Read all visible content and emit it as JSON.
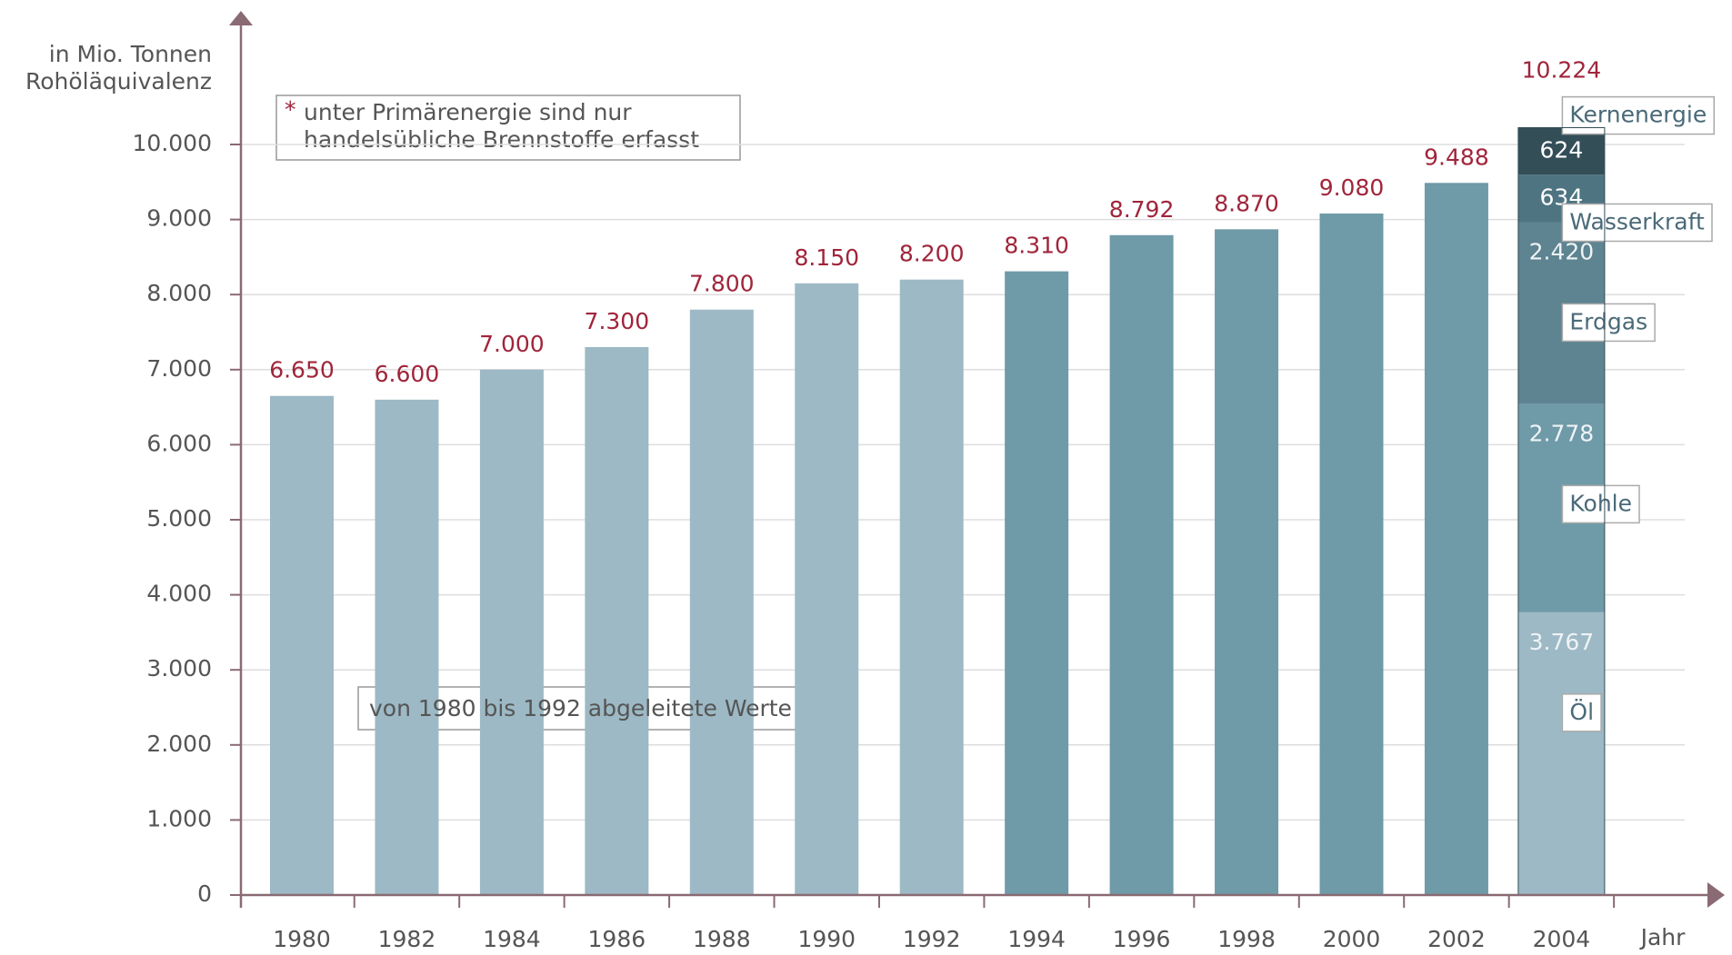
{
  "chart_data": {
    "type": "bar",
    "y_label": [
      "in Mio. Tonnen",
      "Rohöläquivalenz"
    ],
    "x_label": "Jahr",
    "note_marker": "*",
    "note": [
      "unter Primärenergie sind nur",
      "handelsübliche Brennstoffe erfasst"
    ],
    "annotation": "von 1980 bis 1992 abgeleitete Werte",
    "categories": [
      "1980",
      "1982",
      "1984",
      "1986",
      "1988",
      "1990",
      "1992",
      "1994",
      "1996",
      "1998",
      "2000",
      "2002",
      "2004"
    ],
    "values": [
      6650,
      6600,
      7000,
      7300,
      7800,
      8150,
      8200,
      8310,
      8792,
      8870,
      9080,
      9488,
      10224
    ],
    "value_labels": [
      "6.650",
      "6.600",
      "7.000",
      "7.300",
      "7.800",
      "8.150",
      "8.200",
      "8.310",
      "8.792",
      "8.870",
      "9.080",
      "9.488",
      "10.224"
    ],
    "colors": [
      "#9db9c5",
      "#9db9c5",
      "#9db9c5",
      "#9db9c5",
      "#9db9c5",
      "#9db9c5",
      "#9db9c5",
      "#6f9aa8",
      "#6f9aa8",
      "#6f9aa8",
      "#6f9aa8",
      "#6f9aa8",
      "#344e58"
    ],
    "series": [
      {
        "name": "Öl",
        "color": "#9db9c5",
        "values": [
          null,
          null,
          null,
          null,
          null,
          null,
          null,
          null,
          null,
          null,
          null,
          null,
          3767
        ],
        "value_labels": [
          null,
          null,
          null,
          null,
          null,
          null,
          null,
          null,
          null,
          null,
          null,
          null,
          "3.767"
        ]
      },
      {
        "name": "Kohle",
        "color": "#6f9aa8",
        "values": [
          null,
          null,
          null,
          null,
          null,
          null,
          null,
          null,
          null,
          null,
          null,
          null,
          2778
        ],
        "value_labels": [
          null,
          null,
          null,
          null,
          null,
          null,
          null,
          null,
          null,
          null,
          null,
          null,
          "2.778"
        ]
      },
      {
        "name": "Erdgas",
        "color": "#5e8391",
        "values": [
          null,
          null,
          null,
          null,
          null,
          null,
          null,
          null,
          null,
          null,
          null,
          null,
          2420
        ],
        "value_labels": [
          null,
          null,
          null,
          null,
          null,
          null,
          null,
          null,
          null,
          null,
          null,
          null,
          "2.420"
        ]
      },
      {
        "name": "Wasserkraft",
        "color": "#4e7482",
        "values": [
          null,
          null,
          null,
          null,
          null,
          null,
          null,
          null,
          null,
          null,
          null,
          null,
          634
        ],
        "value_labels": [
          null,
          null,
          null,
          null,
          null,
          null,
          null,
          null,
          null,
          null,
          null,
          null,
          "634"
        ]
      },
      {
        "name": "Kernenergie",
        "color": "#344e58",
        "values": [
          null,
          null,
          null,
          null,
          null,
          null,
          null,
          null,
          null,
          null,
          null,
          null,
          624
        ],
        "value_labels": [
          null,
          null,
          null,
          null,
          null,
          null,
          null,
          null,
          null,
          null,
          null,
          null,
          "624"
        ]
      }
    ],
    "ylim": [
      0,
      10000
    ],
    "yticks": [
      0,
      {
        "value": 1000,
        "label": "1.000"
      },
      {
        "value": 2000,
        "label": "2.000"
      },
      {
        "value": 3000,
        "label": "3.000"
      },
      {
        "value": 4000,
        "label": "4.000"
      },
      {
        "value": 5000,
        "label": "5.000"
      },
      {
        "value": 6000,
        "label": "6.000"
      },
      {
        "value": 7000,
        "label": "7.000"
      },
      {
        "value": 8000,
        "label": "8.000"
      },
      {
        "value": 9000,
        "label": "9.000"
      },
      {
        "value": 10000,
        "label": "10.000"
      }
    ],
    "grid": true,
    "label_color": "#a0253b",
    "axis_color": "#8a6a73"
  }
}
